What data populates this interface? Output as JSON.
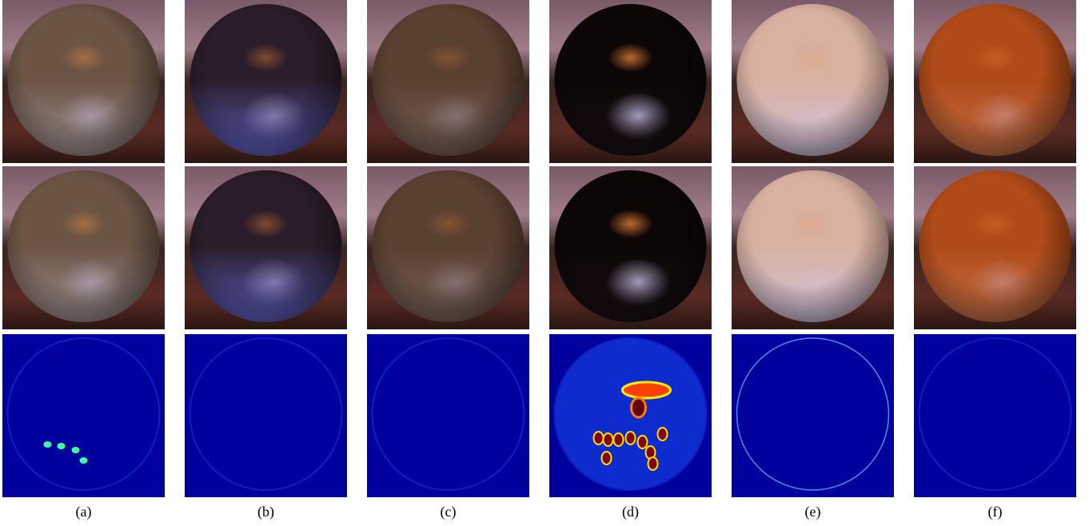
{
  "figure": {
    "labels": [
      "(a)",
      "(b)",
      "(c)",
      "(d)",
      "(e)",
      "(f)"
    ]
  }
}
